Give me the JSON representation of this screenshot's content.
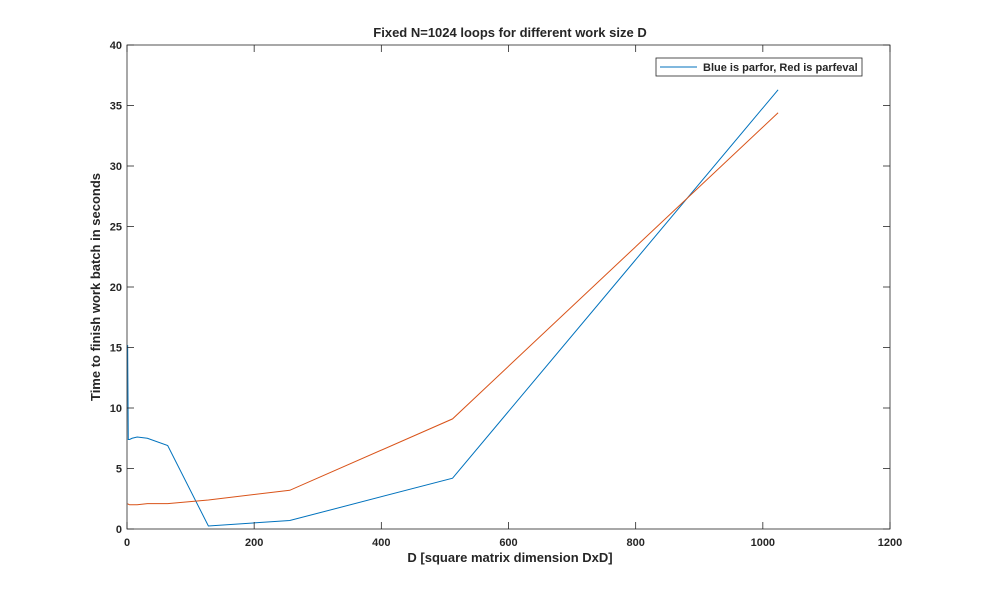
{
  "chart_data": {
    "type": "line",
    "title": "Fixed N=1024 loops for different work size D",
    "xlabel": "D [square matrix dimension DxD]",
    "ylabel": "Time to finish work batch in seconds",
    "xlim": [
      0,
      1200
    ],
    "ylim": [
      0,
      40
    ],
    "x_ticks": [
      0,
      200,
      400,
      600,
      800,
      1000,
      1200
    ],
    "y_ticks": [
      0,
      5,
      10,
      15,
      20,
      25,
      30,
      35,
      40
    ],
    "x_tick_labels": [
      "0",
      "200",
      "400",
      "600",
      "800",
      "1000",
      "1200"
    ],
    "y_tick_labels": [
      "0",
      "5",
      "10",
      "15",
      "20",
      "25",
      "30",
      "35",
      "40"
    ],
    "grid": false,
    "legend_position": "top-right",
    "legend_text": "Blue is parfor, Red is parfeval",
    "series": [
      {
        "name": "Blue is parfor, Red is parfeval",
        "color": "#0072BD",
        "x": [
          1,
          2,
          4,
          8,
          16,
          32,
          64,
          128,
          256,
          512,
          1024
        ],
        "y": [
          15.2,
          7.4,
          7.4,
          7.5,
          7.6,
          7.5,
          6.9,
          0.25,
          0.7,
          4.2,
          36.3
        ]
      },
      {
        "color": "#D95319",
        "x": [
          1,
          2,
          4,
          8,
          16,
          32,
          64,
          128,
          256,
          512,
          1024
        ],
        "y": [
          2.1,
          2.05,
          2.0,
          2.0,
          2.0,
          2.1,
          2.1,
          2.4,
          3.2,
          9.1,
          34.4
        ]
      }
    ]
  }
}
